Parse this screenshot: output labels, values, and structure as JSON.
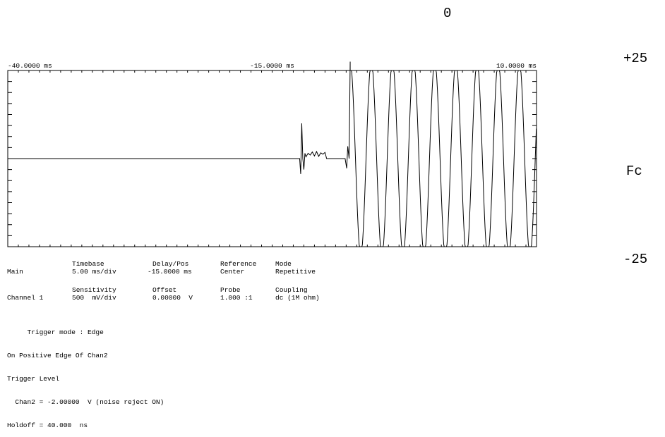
{
  "side_scale": {
    "top_label": "0",
    "upper_label": "+25",
    "middle_label": "Fc",
    "lower_label": "-25"
  },
  "chart_data": {
    "type": "line",
    "title": "",
    "x_unit": "ms",
    "x_tick_labels": [
      "-40.0000 ms",
      "-15.0000 ms",
      "10.0000 ms"
    ],
    "xlim": [
      -40.0,
      10.0
    ],
    "y_unit": "V",
    "ylim": [
      -2.0,
      2.0
    ],
    "grid": false,
    "series": [
      {
        "points": [
          [
            -40.0,
            0.0
          ],
          [
            -12.4,
            0.0
          ],
          [
            -12.3,
            -0.35
          ],
          [
            -12.2,
            0.8
          ],
          [
            -12.1,
            0.0
          ],
          [
            -12.0,
            -0.25
          ],
          [
            -11.9,
            0.12
          ],
          [
            -11.8,
            0.04
          ],
          [
            -11.6,
            0.12
          ],
          [
            -11.4,
            0.08
          ],
          [
            -11.2,
            0.15
          ],
          [
            -11.0,
            0.06
          ],
          [
            -10.8,
            0.16
          ],
          [
            -10.6,
            0.05
          ],
          [
            -10.4,
            0.13
          ],
          [
            -10.2,
            0.1
          ],
          [
            -10.0,
            0.14
          ],
          [
            -9.85,
            0.0
          ],
          [
            -8.1,
            0.0
          ],
          [
            -7.95,
            -0.22
          ],
          [
            -7.85,
            0.28
          ],
          [
            -7.72,
            0.0
          ],
          [
            -7.62,
            2.2
          ]
        ],
        "oscillation": {
          "start_ms": -7.62,
          "end_ms": 10.0,
          "amplitude_v": 2.2,
          "period_ms": 2.0
        }
      }
    ]
  },
  "settings": {
    "main_label": "Main",
    "timebase_header": "Timebase",
    "timebase_value": "5.00 ms/div",
    "delay_header": "Delay/Pos",
    "delay_value": "-15.0000 ms",
    "reference_header": "Reference",
    "reference_value": "Center",
    "mode_header": "Mode",
    "mode_value": "Repetitive",
    "channel_label": "Channel 1",
    "sensitivity_header": "Sensitivity",
    "sensitivity_value": "500  mV/div",
    "offset_header": "Offset",
    "offset_value": "0.00000  V",
    "probe_header": "Probe",
    "probe_value": "1.000 :1",
    "coupling_header": "Coupling",
    "coupling_value": "dc (1M ohm)"
  },
  "trigger": {
    "line1": "     Trigger mode : Edge",
    "line2": "On Positive Edge Of Chan2",
    "line3": "Trigger Level",
    "line4": "  Chan2 = -2.00000  V (noise reject ON)",
    "line5": "Holdoff = 40.000  ns"
  }
}
